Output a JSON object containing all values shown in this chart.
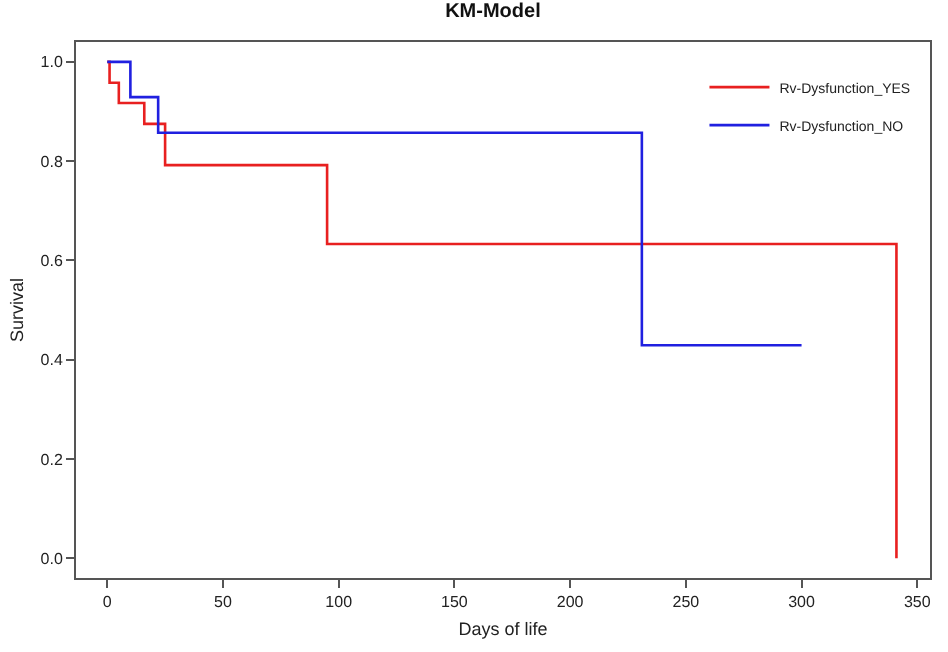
{
  "chart_data": {
    "type": "step",
    "title": "KM-Model",
    "xlabel": "Days of life",
    "ylabel": "Survival",
    "series": [
      {
        "name": "Rv-Dysfunction_YES",
        "color": "#e82020",
        "x": [
          0,
          1,
          5,
          16,
          25,
          95,
          341
        ],
        "values": [
          1,
          0.958,
          0.917,
          0.875,
          0.792,
          0.633,
          0
        ]
      },
      {
        "name": "Rv-Dysfunction_NO",
        "color": "#2020e0",
        "x": [
          0,
          10,
          22,
          231,
          300
        ],
        "values": [
          1,
          0.929,
          0.857,
          0.429,
          0.429
        ]
      }
    ],
    "xlim": [
      -13.5,
      355.5
    ],
    "ylim": [
      -0.04,
      1.04
    ],
    "xticks": [
      0,
      50,
      100,
      150,
      200,
      250,
      300,
      350
    ],
    "yticks": [
      {
        "value": 0,
        "label": "0.0"
      },
      0.2,
      0.4,
      0.6,
      0.8,
      {
        "value": 1,
        "label": "1.0"
      }
    ],
    "legend": "top right",
    "marker": "none",
    "line_style": "solid"
  }
}
